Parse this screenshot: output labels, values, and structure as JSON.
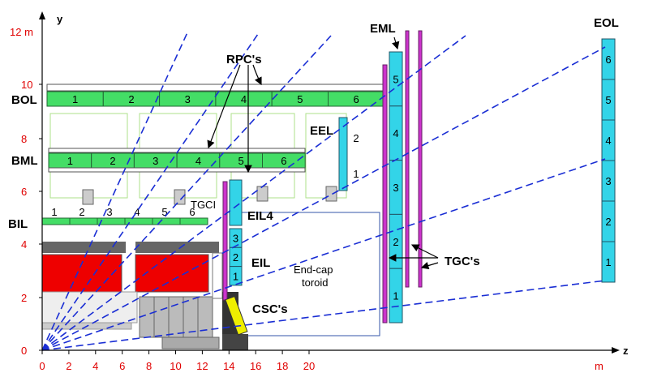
{
  "axes": {
    "y_label": "y",
    "z_label": "z",
    "y_unit_label": "12 m",
    "z_unit_label": "m",
    "y_ticks": [
      "0",
      "2",
      "4",
      "6",
      "8",
      "10"
    ],
    "z_ticks": [
      "0",
      "2",
      "4",
      "6",
      "8",
      "10",
      "12",
      "14",
      "16",
      "18",
      "20"
    ]
  },
  "labels": {
    "bol": "BOL",
    "bml": "BML",
    "bil": "BIL",
    "eel": "EEL",
    "eml": "EML",
    "eol": "EOL",
    "eil": "EIL",
    "eil4": "EIL4",
    "tgci": "TGCI",
    "rpcs": "RPC's",
    "tgcs": "TGC's",
    "cscs": "CSC's",
    "endcap_line1": "End-cap",
    "endcap_line2": "toroid"
  },
  "bol_cells": [
    "1",
    "2",
    "3",
    "4",
    "5",
    "6"
  ],
  "bml_cells": [
    "1",
    "2",
    "3",
    "4",
    "5",
    "6"
  ],
  "bil_cells": [
    "1",
    "2",
    "3",
    "4",
    "5",
    "6"
  ],
  "eel_cells": [
    "2",
    "1"
  ],
  "eml_cells": [
    "5",
    "4",
    "3",
    "2",
    "1"
  ],
  "eol_cells": [
    "6",
    "5",
    "4",
    "3",
    "2",
    "1"
  ],
  "eil_cells": [
    "3",
    "2",
    "1"
  ],
  "colors": {
    "chamber_green": "#44dd66",
    "chamber_cyan": "#33d4e8",
    "rpc_magenta": "#cc33cc",
    "calorimeter_red": "#ee0000",
    "ray_blue": "#1a2ed4",
    "axis_red": "#e00000",
    "csc_yellow": "#eeee00"
  }
}
